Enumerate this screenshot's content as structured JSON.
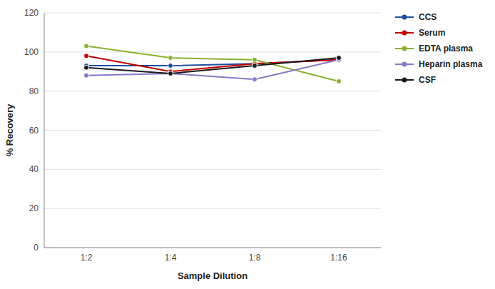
{
  "chart_data": {
    "type": "line",
    "xlabel": "Sample Dilution",
    "ylabel": "% Recovery",
    "categories": [
      "1:2",
      "1:4",
      "1:8",
      "1:16"
    ],
    "series": [
      {
        "name": "CCS",
        "color": "#1f4e9e",
        "values": [
          93,
          93,
          94,
          96
        ]
      },
      {
        "name": "Serum",
        "color": "#c00000",
        "values": [
          98,
          90,
          94,
          96
        ]
      },
      {
        "name": "EDTA plasma",
        "color": "#8db030",
        "values": [
          103,
          97,
          96,
          85
        ]
      },
      {
        "name": "Heparin plasma",
        "color": "#8878c8",
        "values": [
          88,
          89,
          86,
          96
        ]
      },
      {
        "name": "CSF",
        "color": "#1a1a1a",
        "values": [
          92,
          89,
          93,
          97
        ]
      }
    ],
    "ylim": [
      0,
      120
    ],
    "yticks": [
      0,
      20,
      40,
      60,
      80,
      100,
      120
    ],
    "grid": true,
    "legend": "right",
    "marker": "circle",
    "line_style": "solid"
  }
}
